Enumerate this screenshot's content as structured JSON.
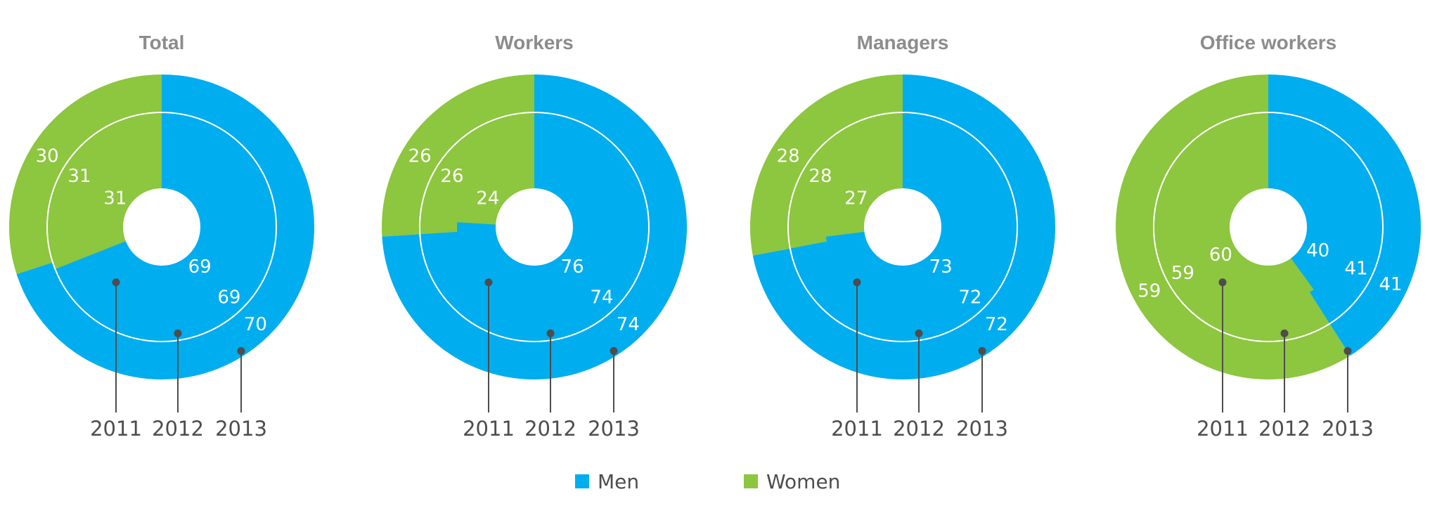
{
  "chart_data": [
    {
      "type": "pie",
      "subtype": "concentric-donut",
      "title": "Total",
      "rings": [
        {
          "year": "2011",
          "men": 69,
          "women": 31
        },
        {
          "year": "2012",
          "men": 69,
          "women": 31
        },
        {
          "year": "2013",
          "men": 70,
          "women": 30
        }
      ]
    },
    {
      "type": "pie",
      "subtype": "concentric-donut",
      "title": "Workers",
      "rings": [
        {
          "year": "2011",
          "men": 76,
          "women": 24
        },
        {
          "year": "2012",
          "men": 74,
          "women": 26
        },
        {
          "year": "2013",
          "men": 74,
          "women": 26
        }
      ]
    },
    {
      "type": "pie",
      "subtype": "concentric-donut",
      "title": "Managers",
      "rings": [
        {
          "year": "2011",
          "men": 73,
          "women": 27
        },
        {
          "year": "2012",
          "men": 72,
          "women": 28
        },
        {
          "year": "2013",
          "men": 72,
          "women": 28
        }
      ]
    },
    {
      "type": "pie",
      "subtype": "concentric-donut",
      "title": "Office workers",
      "rings": [
        {
          "year": "2011",
          "men": 40,
          "women": 60
        },
        {
          "year": "2012",
          "men": 41,
          "women": 59
        },
        {
          "year": "2013",
          "men": 41,
          "women": 59
        }
      ]
    }
  ],
  "legend": {
    "placement": "bottom-center",
    "items": [
      {
        "key": "men",
        "label": "Men",
        "color": "#00adef"
      },
      {
        "key": "women",
        "label": "Women",
        "color": "#8dc63f"
      }
    ]
  },
  "colors": {
    "men": "#00adef",
    "women": "#8dc63f",
    "divider": "#ffffff",
    "leader": "#4d4d4d"
  }
}
